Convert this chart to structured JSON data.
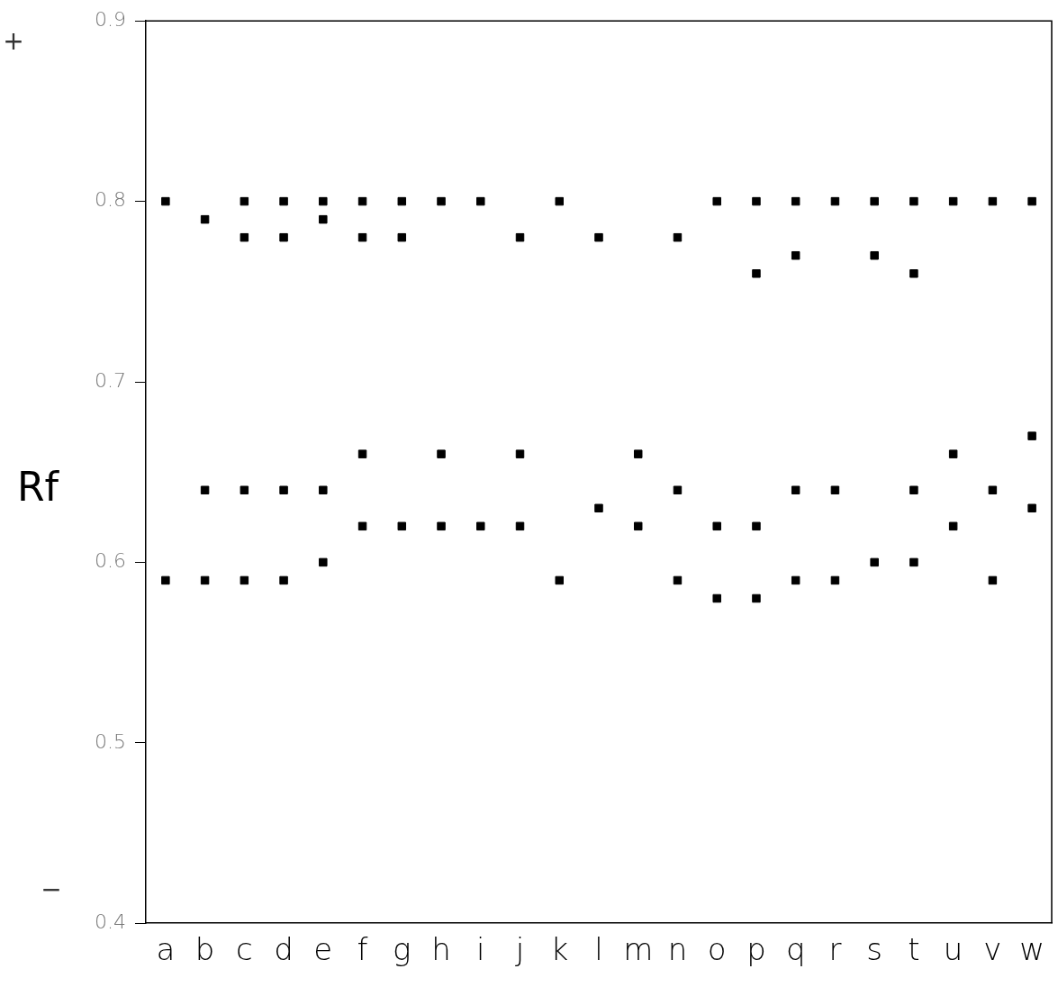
{
  "chart_data": {
    "type": "scatter",
    "ylabel": "Rf",
    "categories": [
      "a",
      "b",
      "c",
      "d",
      "e",
      "f",
      "g",
      "h",
      "i",
      "j",
      "k",
      "l",
      "m",
      "n",
      "o",
      "p",
      "q",
      "r",
      "s",
      "t",
      "u",
      "v",
      "w"
    ],
    "series": [
      {
        "color": "#000000",
        "x": [
          "a",
          "a",
          "b",
          "b",
          "b",
          "c",
          "c",
          "c",
          "c",
          "d",
          "d",
          "d",
          "d",
          "e",
          "e",
          "e",
          "e",
          "f",
          "f",
          "f",
          "f",
          "g",
          "g",
          "g",
          "h",
          "h",
          "h",
          "i",
          "i",
          "j",
          "j",
          "j",
          "k",
          "k",
          "l",
          "l",
          "m",
          "m",
          "n",
          "n",
          "n",
          "o",
          "o",
          "o",
          "p",
          "p",
          "p",
          "p",
          "q",
          "q",
          "q",
          "q",
          "r",
          "r",
          "r",
          "s",
          "s",
          "s",
          "t",
          "t",
          "t",
          "t",
          "u",
          "u",
          "u",
          "v",
          "v",
          "v",
          "w",
          "w",
          "w"
        ],
        "values": [
          0.8,
          0.59,
          0.79,
          0.64,
          0.59,
          0.8,
          0.78,
          0.64,
          0.59,
          0.8,
          0.78,
          0.64,
          0.59,
          0.8,
          0.79,
          0.64,
          0.6,
          0.8,
          0.78,
          0.66,
          0.62,
          0.8,
          0.78,
          0.62,
          0.8,
          0.66,
          0.62,
          0.8,
          0.62,
          0.78,
          0.66,
          0.62,
          0.8,
          0.59,
          0.78,
          0.63,
          0.66,
          0.62,
          0.78,
          0.64,
          0.59,
          0.8,
          0.62,
          0.58,
          0.8,
          0.76,
          0.62,
          0.58,
          0.8,
          0.77,
          0.64,
          0.59,
          0.8,
          0.64,
          0.59,
          0.8,
          0.77,
          0.6,
          0.8,
          0.76,
          0.64,
          0.6,
          0.8,
          0.66,
          0.62,
          0.8,
          0.64,
          0.59,
          0.8,
          0.67,
          0.63
        ]
      }
    ],
    "ylim": [
      0.4,
      0.9
    ],
    "yticks": [
      0.4,
      0.5,
      0.6,
      0.7,
      0.8,
      0.9
    ],
    "marker": "square",
    "grid": false,
    "legend": false,
    "annotations": [
      "+",
      "−"
    ]
  }
}
